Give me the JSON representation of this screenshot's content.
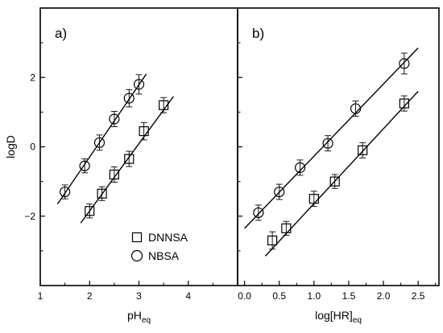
{
  "chart_data": [
    {
      "type": "scatter",
      "panel_label": "a)",
      "xlabel": "pH",
      "xlabel_sub": "eq",
      "ylabel": "logD",
      "xlim": [
        1,
        5
      ],
      "ylim": [
        -4,
        4
      ],
      "xticks": [
        1,
        2,
        3,
        4
      ],
      "yticks": [
        -2,
        0,
        2
      ],
      "series": [
        {
          "name": "DNNSA",
          "marker": "square",
          "x": [
            2.0,
            2.25,
            2.5,
            2.8,
            3.1,
            3.5
          ],
          "y": [
            -1.85,
            -1.35,
            -0.8,
            -0.35,
            0.45,
            1.2
          ],
          "err": [
            0.2,
            0.2,
            0.22,
            0.22,
            0.25,
            0.22
          ],
          "fit": {
            "x": [
              1.82,
              3.7
            ],
            "y": [
              -2.2,
              1.45
            ]
          }
        },
        {
          "name": "NBSA",
          "marker": "circle",
          "x": [
            1.5,
            1.9,
            2.2,
            2.5,
            2.8,
            3.0
          ],
          "y": [
            -1.3,
            -0.55,
            0.12,
            0.8,
            1.4,
            1.8
          ],
          "err": [
            0.2,
            0.2,
            0.22,
            0.22,
            0.25,
            0.28
          ],
          "fit": {
            "x": [
              1.35,
              3.15
            ],
            "y": [
              -1.65,
              2.1
            ]
          }
        }
      ],
      "legend": {
        "placement": "lower-right",
        "entries": [
          "DNNSA",
          "NBSA"
        ]
      }
    },
    {
      "type": "scatter",
      "panel_label": "b)",
      "xlabel": "log[HR]",
      "xlabel_sub": "eq",
      "xlim": [
        -0.1,
        2.8
      ],
      "ylim": [
        -4,
        4
      ],
      "xticks": [
        0.0,
        0.5,
        1.0,
        1.5,
        2.0,
        2.5
      ],
      "yticks": [
        -2,
        0,
        2
      ],
      "series": [
        {
          "name": "DNNSA",
          "marker": "square",
          "x": [
            0.4,
            0.6,
            1.0,
            1.3,
            1.7,
            2.3
          ],
          "y": [
            -2.7,
            -2.35,
            -1.5,
            -1.0,
            -0.1,
            1.25
          ],
          "err": [
            0.25,
            0.2,
            0.22,
            0.2,
            0.22,
            0.22
          ],
          "fit": {
            "x": [
              0.3,
              2.5
            ],
            "y": [
              -3.15,
              1.6
            ]
          }
        },
        {
          "name": "NBSA",
          "marker": "circle",
          "x": [
            0.2,
            0.5,
            0.8,
            1.2,
            1.6,
            2.3
          ],
          "y": [
            -1.9,
            -1.3,
            -0.6,
            0.1,
            1.1,
            2.4
          ],
          "err": [
            0.22,
            0.22,
            0.22,
            0.22,
            0.22,
            0.3
          ],
          "fit": {
            "x": [
              0.0,
              2.5
            ],
            "y": [
              -2.35,
              2.85
            ]
          }
        }
      ]
    }
  ]
}
